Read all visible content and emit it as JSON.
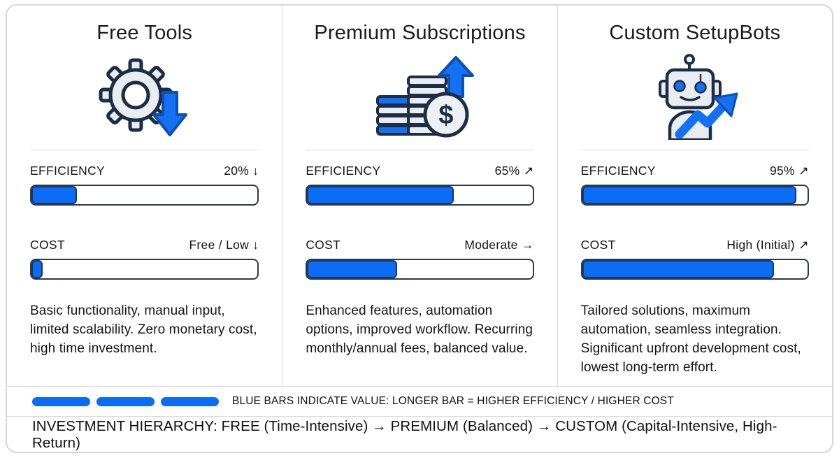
{
  "theme": {
    "accent_blue": "#0b6cf5",
    "bar_border": "#33383e",
    "fill_border": "#14386b",
    "divider_gray": "#d9d9d9",
    "icon_gray": "#e9ecf0",
    "icon_outline": "#1d2d44"
  },
  "columns": [
    {
      "title": "Free Tools",
      "icon": "gear-down-icon",
      "metrics": [
        {
          "label": "EFFICIENCY",
          "display": "20% ↓",
          "fill_percent": 20
        },
        {
          "label": "COST",
          "display": "Free / Low ↓",
          "fill_percent": 5
        }
      ],
      "description": "Basic functionality, manual input, limited scalability. Zero monetary cost, high time investment."
    },
    {
      "title": "Premium Subscriptions",
      "icon": "coins-up-icon",
      "metrics": [
        {
          "label": "EFFICIENCY",
          "display": "65% ↗",
          "fill_percent": 65
        },
        {
          "label": "COST",
          "display": "Moderate →",
          "fill_percent": 40
        }
      ],
      "description": "Enhanced features, automation options, improved workflow. Recurring monthly/annual fees, balanced value."
    },
    {
      "title": "Custom SetupBots",
      "icon": "robot-growth-icon",
      "metrics": [
        {
          "label": "EFFICIENCY",
          "display": "95% ↗",
          "fill_percent": 95
        },
        {
          "label": "COST",
          "display": "High (Initial) ↗",
          "fill_percent": 85
        }
      ],
      "description": "Tailored solutions, maximum automation, seamless integration. Significant upfront development cost, lowest long-term effort."
    }
  ],
  "legend": {
    "swatch_count": 3,
    "text": "BLUE BARS INDICATE VALUE: LONGER BAR = HIGHER EFFICIENCY / HIGHER COST"
  },
  "footer": {
    "text": "INVESTMENT HIERARCHY: FREE (Time-Intensive) → PREMIUM (Balanced) → CUSTOM (Capital-Intensive, High-Return)"
  }
}
